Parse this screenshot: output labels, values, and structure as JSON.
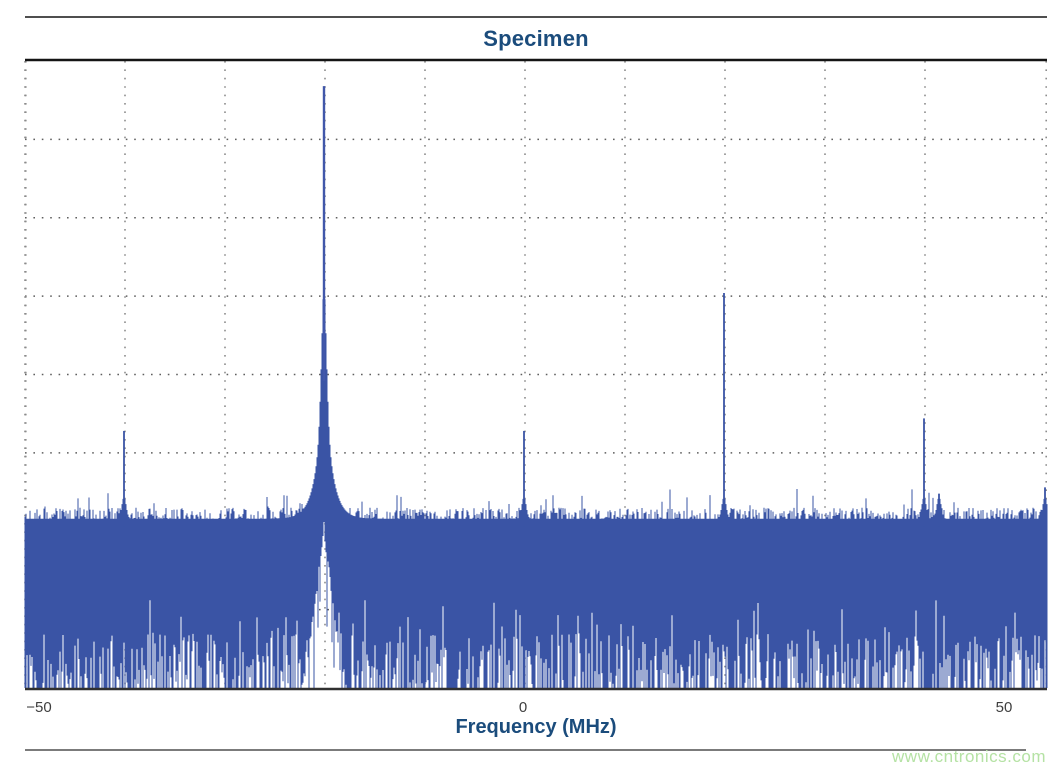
{
  "page": {
    "watermark_text": "www.cntronics.com"
  },
  "chart_data": {
    "type": "line",
    "title": "Specimen",
    "xlabel": "Frequency (MHz)",
    "x_tick_labels": [
      "−50",
      "0",
      "50"
    ],
    "x_ticks_mhz": [
      -50,
      0,
      50
    ],
    "xlim_mhz": [
      -50,
      52.2
    ],
    "y_axis": {
      "labels_visible": false,
      "divisions": 8
    },
    "grid": {
      "style": "dotted",
      "x_step_mhz": 10
    },
    "line_color": "#3A54A5",
    "spike_color": "#4157AA",
    "title_color": "#1B4C7C",
    "tick_color": "#3F3F3F",
    "grid_color_h": "#5F5F5F",
    "grid_color_v": "#8C8C8C",
    "watermark_color": "#B5E2A4",
    "noise_band": {
      "top_frac": 0.27,
      "bottom_frac": 0.0
    },
    "peaks": [
      {
        "freq_mhz": -40.1,
        "amp_frac": 0.41
      },
      {
        "freq_mhz": -20.1,
        "amp_frac": 0.96,
        "pedestal": true
      },
      {
        "freq_mhz": -0.1,
        "amp_frac": 0.41
      },
      {
        "freq_mhz": 19.9,
        "amp_frac": 0.63
      },
      {
        "freq_mhz": 39.9,
        "amp_frac": 0.43
      },
      {
        "freq_mhz": 41.4,
        "amp_frac": 0.31
      },
      {
        "freq_mhz": 52.0,
        "amp_frac": 0.32
      }
    ]
  }
}
